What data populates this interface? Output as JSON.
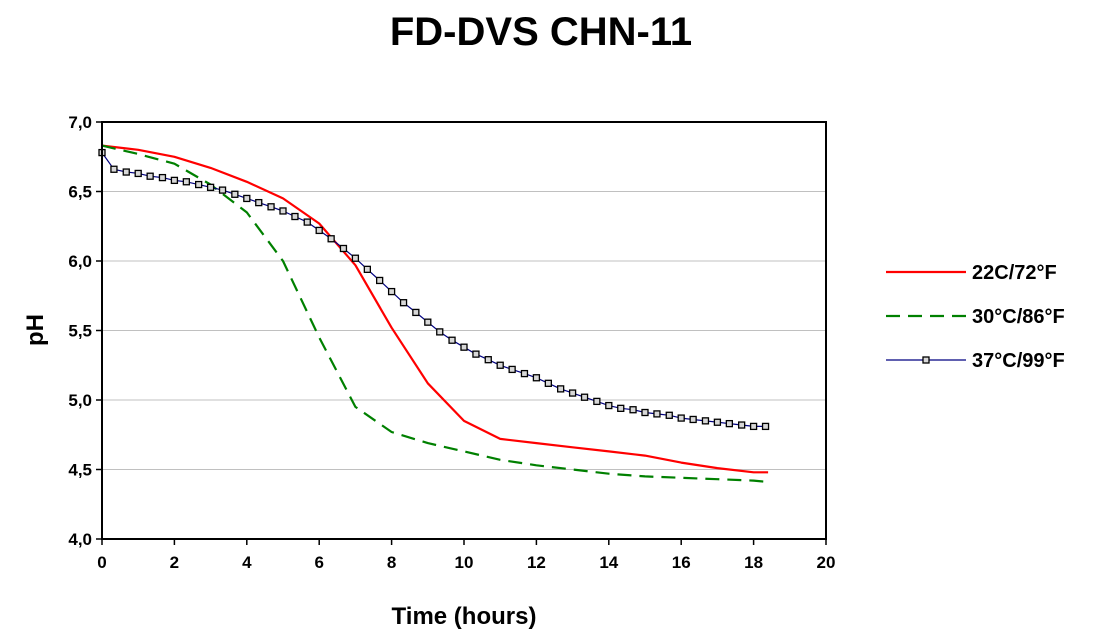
{
  "chart_data": {
    "type": "line",
    "title": "FD-DVS CHN-11",
    "xlabel": "Time (hours)",
    "ylabel": "pH",
    "xlim": [
      0,
      20
    ],
    "ylim": [
      4.0,
      7.0
    ],
    "x_ticks": [
      "0",
      "2",
      "4",
      "6",
      "8",
      "10",
      "12",
      "14",
      "16",
      "18",
      "20"
    ],
    "y_ticks": [
      "4,0",
      "4,5",
      "5,0",
      "5,5",
      "6,0",
      "6,5",
      "7,0"
    ],
    "grid": "horizontal",
    "legend": "right",
    "series": [
      {
        "name": "22C/72°F",
        "color": "#ff0000",
        "style": "solid",
        "points": [
          [
            0,
            6.83
          ],
          [
            1,
            6.8
          ],
          [
            2,
            6.75
          ],
          [
            3,
            6.67
          ],
          [
            4,
            6.57
          ],
          [
            5,
            6.45
          ],
          [
            6,
            6.27
          ],
          [
            7,
            5.97
          ],
          [
            8,
            5.52
          ],
          [
            9,
            5.12
          ],
          [
            10,
            4.85
          ],
          [
            11,
            4.72
          ],
          [
            12,
            4.69
          ],
          [
            13,
            4.66
          ],
          [
            14,
            4.63
          ],
          [
            15,
            4.6
          ],
          [
            16,
            4.55
          ],
          [
            17,
            4.51
          ],
          [
            18,
            4.48
          ],
          [
            18.4,
            4.48
          ]
        ]
      },
      {
        "name": "30°C/86°F",
        "color": "#008000",
        "style": "dashed",
        "points": [
          [
            0,
            6.83
          ],
          [
            1,
            6.77
          ],
          [
            2,
            6.7
          ],
          [
            3,
            6.55
          ],
          [
            4,
            6.35
          ],
          [
            5,
            6.0
          ],
          [
            6,
            5.45
          ],
          [
            7,
            4.95
          ],
          [
            8,
            4.77
          ],
          [
            9,
            4.69
          ],
          [
            10,
            4.63
          ],
          [
            11,
            4.57
          ],
          [
            12,
            4.53
          ],
          [
            13,
            4.5
          ],
          [
            14,
            4.47
          ],
          [
            15,
            4.45
          ],
          [
            16,
            4.44
          ],
          [
            17,
            4.43
          ],
          [
            18,
            4.42
          ],
          [
            18.4,
            4.41
          ]
        ]
      },
      {
        "name": "37°C/99°F",
        "color": "#000080",
        "style": "solid-markers",
        "points": [
          [
            0,
            6.78
          ],
          [
            0.33,
            6.66
          ],
          [
            0.67,
            6.64
          ],
          [
            1.0,
            6.63
          ],
          [
            1.33,
            6.61
          ],
          [
            1.67,
            6.6
          ],
          [
            2.0,
            6.58
          ],
          [
            2.33,
            6.57
          ],
          [
            2.67,
            6.55
          ],
          [
            3.0,
            6.53
          ],
          [
            3.33,
            6.51
          ],
          [
            3.67,
            6.48
          ],
          [
            4.0,
            6.45
          ],
          [
            4.33,
            6.42
          ],
          [
            4.67,
            6.39
          ],
          [
            5.0,
            6.36
          ],
          [
            5.33,
            6.32
          ],
          [
            5.67,
            6.28
          ],
          [
            6.0,
            6.22
          ],
          [
            6.33,
            6.16
          ],
          [
            6.67,
            6.09
          ],
          [
            7.0,
            6.02
          ],
          [
            7.33,
            5.94
          ],
          [
            7.67,
            5.86
          ],
          [
            8.0,
            5.78
          ],
          [
            8.33,
            5.7
          ],
          [
            8.67,
            5.63
          ],
          [
            9.0,
            5.56
          ],
          [
            9.33,
            5.49
          ],
          [
            9.67,
            5.43
          ],
          [
            10.0,
            5.38
          ],
          [
            10.33,
            5.33
          ],
          [
            10.67,
            5.29
          ],
          [
            11.0,
            5.25
          ],
          [
            11.33,
            5.22
          ],
          [
            11.67,
            5.19
          ],
          [
            12.0,
            5.16
          ],
          [
            12.33,
            5.12
          ],
          [
            12.67,
            5.08
          ],
          [
            13.0,
            5.05
          ],
          [
            13.33,
            5.02
          ],
          [
            13.67,
            4.99
          ],
          [
            14.0,
            4.96
          ],
          [
            14.33,
            4.94
          ],
          [
            14.67,
            4.93
          ],
          [
            15.0,
            4.91
          ],
          [
            15.33,
            4.9
          ],
          [
            15.67,
            4.89
          ],
          [
            16.0,
            4.87
          ],
          [
            16.33,
            4.86
          ],
          [
            16.67,
            4.85
          ],
          [
            17.0,
            4.84
          ],
          [
            17.33,
            4.83
          ],
          [
            17.67,
            4.82
          ],
          [
            18.0,
            4.81
          ],
          [
            18.33,
            4.81
          ]
        ]
      }
    ]
  }
}
